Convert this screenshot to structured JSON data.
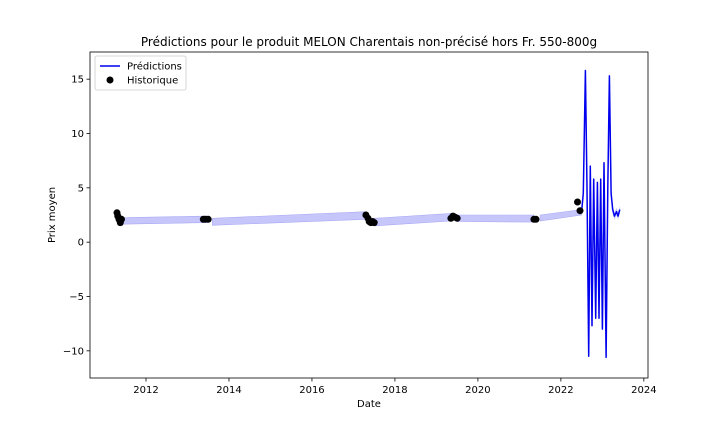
{
  "chart_data": {
    "type": "line",
    "title": "Prédictions pour le produit MELON Charentais non-précisé hors Fr. 550-800g",
    "xlabel": "Date",
    "ylabel": "Prix moyen",
    "xlim": [
      2010.65,
      2024.1
    ],
    "ylim": [
      -12.5,
      17.5
    ],
    "x_ticks": [
      2012,
      2014,
      2016,
      2018,
      2020,
      2022,
      2024
    ],
    "x_tick_labels": [
      "2012",
      "2014",
      "2016",
      "2018",
      "2020",
      "2022",
      "2024"
    ],
    "y_ticks": [
      -10,
      -5,
      0,
      5,
      10,
      15
    ],
    "y_tick_labels": [
      "−10",
      "−5",
      "0",
      "5",
      "10",
      "15"
    ],
    "grid": false,
    "legend": {
      "position": "top-left",
      "entries": [
        "Prédictions",
        "Historique"
      ]
    },
    "colors": {
      "prediction_line": "#0000ee",
      "confidence_band": "#c6c6fb",
      "confidence_edge": "#a9a9f5",
      "history_points": "#000000"
    },
    "confidence_band_segments": [
      [
        [
          2011.4,
          1.65,
          2.25
        ],
        [
          2013.5,
          1.8,
          2.4
        ]
      ],
      [
        [
          2013.6,
          1.55,
          2.2
        ],
        [
          2017.3,
          2.1,
          2.8
        ]
      ],
      [
        [
          2017.5,
          1.5,
          2.2
        ],
        [
          2019.35,
          1.95,
          2.65
        ]
      ],
      [
        [
          2019.5,
          1.9,
          2.5
        ],
        [
          2021.35,
          1.85,
          2.5
        ]
      ],
      [
        [
          2021.5,
          1.95,
          2.5
        ],
        [
          2022.5,
          2.5,
          3.0
        ]
      ]
    ],
    "prediction_series": {
      "name": "Prédictions",
      "points": [
        [
          2022.5,
          2.8
        ],
        [
          2022.54,
          4.5
        ],
        [
          2022.59,
          15.8
        ],
        [
          2022.63,
          5.0
        ],
        [
          2022.67,
          -10.5
        ],
        [
          2022.71,
          7.0
        ],
        [
          2022.75,
          -7.7
        ],
        [
          2022.79,
          5.8
        ],
        [
          2022.84,
          -7.0
        ],
        [
          2022.88,
          5.5
        ],
        [
          2022.92,
          -7.0
        ],
        [
          2022.96,
          5.8
        ],
        [
          2023.0,
          -8.0
        ],
        [
          2023.04,
          7.3
        ],
        [
          2023.09,
          -10.6
        ],
        [
          2023.13,
          5.0
        ],
        [
          2023.17,
          15.3
        ],
        [
          2023.21,
          4.5
        ],
        [
          2023.25,
          3.0
        ],
        [
          2023.29,
          2.4
        ],
        [
          2023.34,
          2.8
        ],
        [
          2023.38,
          2.4
        ],
        [
          2023.42,
          3.0
        ]
      ]
    },
    "history_series": {
      "name": "Historique",
      "points": [
        [
          2011.3,
          2.7
        ],
        [
          2011.32,
          2.4
        ],
        [
          2011.35,
          2.1
        ],
        [
          2011.38,
          1.8
        ],
        [
          2011.41,
          2.1
        ],
        [
          2013.38,
          2.1
        ],
        [
          2013.43,
          2.1
        ],
        [
          2013.5,
          2.1
        ],
        [
          2017.3,
          2.5
        ],
        [
          2017.35,
          2.2
        ],
        [
          2017.38,
          1.9
        ],
        [
          2017.42,
          1.8
        ],
        [
          2017.46,
          1.9
        ],
        [
          2017.5,
          1.8
        ],
        [
          2019.35,
          2.2
        ],
        [
          2019.4,
          2.4
        ],
        [
          2019.45,
          2.3
        ],
        [
          2019.5,
          2.2
        ],
        [
          2021.35,
          2.1
        ],
        [
          2021.4,
          2.1
        ],
        [
          2022.4,
          3.7
        ],
        [
          2022.46,
          2.9
        ]
      ]
    }
  }
}
